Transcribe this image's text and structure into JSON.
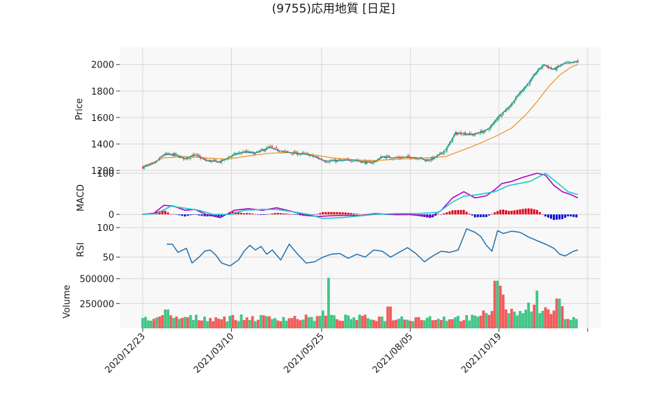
{
  "chart_data": {
    "title": "(9755)応用地質 [日足]",
    "type": "candlestick",
    "x_ticks": [
      "2020/12/23",
      "2021/03/10",
      "2021/05/25",
      "2021/08/05",
      "2021/10/19"
    ],
    "panels": {
      "price": {
        "ylabel": "Price",
        "yticks": [
          "1200",
          "1400",
          "1600",
          "1800",
          "2000"
        ],
        "ylim": [
          1195,
          2130
        ],
        "close_path": [
          [
            0,
            1225
          ],
          [
            8,
            1250
          ],
          [
            15,
            1320
          ],
          [
            22,
            1320
          ],
          [
            30,
            1290
          ],
          [
            37,
            1320
          ],
          [
            45,
            1275
          ],
          [
            55,
            1265
          ],
          [
            65,
            1320
          ],
          [
            72,
            1340
          ],
          [
            80,
            1330
          ],
          [
            90,
            1375
          ],
          [
            98,
            1345
          ],
          [
            108,
            1330
          ],
          [
            118,
            1320
          ],
          [
            130,
            1270
          ],
          [
            140,
            1275
          ],
          [
            150,
            1280
          ],
          [
            160,
            1258
          ],
          [
            165,
            1268
          ],
          [
            170,
            1305
          ],
          [
            178,
            1295
          ],
          [
            188,
            1300
          ],
          [
            196,
            1295
          ],
          [
            202,
            1275
          ],
          [
            208,
            1300
          ],
          [
            215,
            1350
          ],
          [
            222,
            1480
          ],
          [
            228,
            1480
          ],
          [
            235,
            1470
          ],
          [
            240,
            1490
          ],
          [
            244,
            1500
          ],
          [
            248,
            1540
          ],
          [
            252,
            1600
          ],
          [
            256,
            1640
          ],
          [
            262,
            1700
          ],
          [
            268,
            1790
          ],
          [
            275,
            1870
          ],
          [
            280,
            1950
          ],
          [
            285,
            2000
          ],
          [
            288,
            1980
          ],
          [
            292,
            1960
          ],
          [
            296,
            1990
          ],
          [
            300,
            2010
          ],
          [
            304,
            2010
          ],
          [
            309,
            2025
          ]
        ],
        "ma": [
          [
            0,
            1230
          ],
          [
            15,
            1295
          ],
          [
            30,
            1305
          ],
          [
            45,
            1295
          ],
          [
            60,
            1285
          ],
          [
            75,
            1310
          ],
          [
            90,
            1330
          ],
          [
            105,
            1335
          ],
          [
            120,
            1320
          ],
          [
            135,
            1295
          ],
          [
            150,
            1280
          ],
          [
            165,
            1275
          ],
          [
            180,
            1285
          ],
          [
            200,
            1295
          ],
          [
            215,
            1305
          ],
          [
            235,
            1385
          ],
          [
            250,
            1455
          ],
          [
            262,
            1520
          ],
          [
            272,
            1620
          ],
          [
            280,
            1720
          ],
          [
            288,
            1830
          ],
          [
            296,
            1920
          ],
          [
            304,
            1980
          ],
          [
            309,
            2000
          ]
        ]
      },
      "macd": {
        "ylabel": "MACD",
        "yticks": [
          "0",
          "100"
        ],
        "ylim": [
          -25,
          105
        ],
        "macd_line": [
          [
            0,
            0
          ],
          [
            8,
            3
          ],
          [
            15,
            22
          ],
          [
            22,
            20
          ],
          [
            30,
            10
          ],
          [
            37,
            12
          ],
          [
            45,
            0
          ],
          [
            55,
            -8
          ],
          [
            65,
            10
          ],
          [
            75,
            14
          ],
          [
            85,
            10
          ],
          [
            95,
            16
          ],
          [
            105,
            8
          ],
          [
            115,
            -2
          ],
          [
            125,
            -5
          ],
          [
            135,
            -3
          ],
          [
            145,
            -2
          ],
          [
            155,
            -3
          ],
          [
            165,
            2
          ],
          [
            175,
            0
          ],
          [
            190,
            0
          ],
          [
            205,
            -5
          ],
          [
            212,
            10
          ],
          [
            220,
            40
          ],
          [
            228,
            55
          ],
          [
            236,
            40
          ],
          [
            244,
            45
          ],
          [
            250,
            60
          ],
          [
            255,
            75
          ],
          [
            262,
            80
          ],
          [
            270,
            90
          ],
          [
            280,
            100
          ],
          [
            286,
            95
          ],
          [
            292,
            70
          ],
          [
            298,
            55
          ],
          [
            304,
            48
          ],
          [
            309,
            40
          ]
        ],
        "signal_line": [
          [
            0,
            0
          ],
          [
            10,
            2
          ],
          [
            20,
            20
          ],
          [
            30,
            15
          ],
          [
            40,
            10
          ],
          [
            50,
            0
          ],
          [
            62,
            0
          ],
          [
            72,
            10
          ],
          [
            85,
            12
          ],
          [
            95,
            12
          ],
          [
            105,
            7
          ],
          [
            118,
            0
          ],
          [
            128,
            -10
          ],
          [
            140,
            -8
          ],
          [
            150,
            -5
          ],
          [
            165,
            0
          ],
          [
            180,
            2
          ],
          [
            195,
            2
          ],
          [
            210,
            5
          ],
          [
            220,
            30
          ],
          [
            228,
            44
          ],
          [
            238,
            48
          ],
          [
            250,
            55
          ],
          [
            260,
            70
          ],
          [
            275,
            80
          ],
          [
            286,
            100
          ],
          [
            295,
            75
          ],
          [
            302,
            55
          ],
          [
            309,
            48
          ]
        ]
      },
      "rsi": {
        "ylabel": "RSI",
        "yticks": [
          "50",
          "100"
        ],
        "ylim": [
          20,
          105
        ],
        "line": [
          [
            17,
            72
          ],
          [
            21,
            72
          ],
          [
            25,
            58
          ],
          [
            31,
            65
          ],
          [
            35,
            40
          ],
          [
            40,
            50
          ],
          [
            44,
            60
          ],
          [
            48,
            62
          ],
          [
            52,
            53
          ],
          [
            56,
            40
          ],
          [
            62,
            35
          ],
          [
            68,
            45
          ],
          [
            72,
            60
          ],
          [
            76,
            70
          ],
          [
            80,
            62
          ],
          [
            84,
            68
          ],
          [
            88,
            55
          ],
          [
            92,
            62
          ],
          [
            98,
            45
          ],
          [
            104,
            72
          ],
          [
            110,
            55
          ],
          [
            116,
            40
          ],
          [
            122,
            42
          ],
          [
            128,
            50
          ],
          [
            134,
            55
          ],
          [
            140,
            56
          ],
          [
            146,
            48
          ],
          [
            152,
            55
          ],
          [
            158,
            50
          ],
          [
            164,
            62
          ],
          [
            170,
            60
          ],
          [
            176,
            50
          ],
          [
            182,
            58
          ],
          [
            188,
            66
          ],
          [
            194,
            56
          ],
          [
            200,
            42
          ],
          [
            206,
            52
          ],
          [
            212,
            60
          ],
          [
            218,
            58
          ],
          [
            224,
            62
          ],
          [
            230,
            98
          ],
          [
            236,
            92
          ],
          [
            240,
            85
          ],
          [
            244,
            70
          ],
          [
            248,
            60
          ],
          [
            252,
            95
          ],
          [
            256,
            90
          ],
          [
            262,
            94
          ],
          [
            268,
            92
          ],
          [
            274,
            84
          ],
          [
            280,
            78
          ],
          [
            286,
            72
          ],
          [
            292,
            65
          ],
          [
            296,
            55
          ],
          [
            300,
            52
          ],
          [
            303,
            56
          ],
          [
            306,
            60
          ],
          [
            309,
            62
          ]
        ]
      },
      "volume": {
        "ylabel": "Volume",
        "yticks": [
          "250000",
          "500000"
        ],
        "ylim": [
          0,
          540000
        ]
      }
    }
  }
}
